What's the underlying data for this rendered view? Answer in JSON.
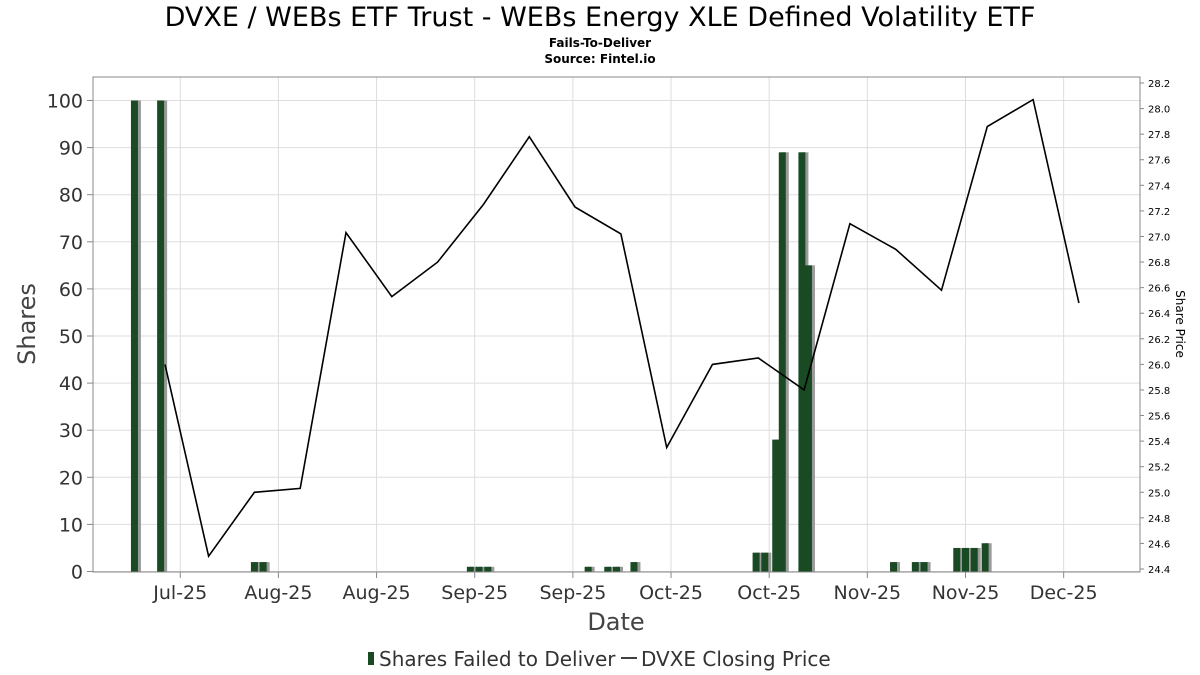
{
  "header": {
    "title": "DVXE / WEBs ETF Trust - WEBs Energy XLE Defined Volatility ETF",
    "subtitle": "Fails-To-Deliver",
    "source": "Source: Fintel.io"
  },
  "colors": {
    "bar": "#1a4a24",
    "bar_shadow": "#9a9a9a",
    "line": "#000000",
    "grid": "#dddddd"
  },
  "chart_data": {
    "type": "bar",
    "xlabel": "Date",
    "ylabel": "Shares",
    "ylabel_right": "Share Price",
    "ylim": [
      0,
      100
    ],
    "ylim_right": [
      24.4,
      28.2
    ],
    "yticks": [
      0,
      10,
      20,
      30,
      40,
      50,
      60,
      70,
      80,
      90,
      100
    ],
    "yticks_right": [
      "24.4",
      "24.6",
      "24.8",
      "25.0",
      "25.2",
      "25.4",
      "25.6",
      "25.8",
      "26.0",
      "26.2",
      "26.4",
      "26.6",
      "26.8",
      "27.0",
      "27.2",
      "27.4",
      "27.6",
      "27.8",
      "28.0",
      "28.2"
    ],
    "xticks": [
      {
        "label": "Jul-25",
        "x": 0.5
      },
      {
        "label": "Aug-25",
        "x": 5.0
      },
      {
        "label": "Aug-25",
        "x": 9.5
      },
      {
        "label": "Sep-25",
        "x": 14.0
      },
      {
        "label": "Sep-25",
        "x": 18.5
      },
      {
        "label": "Oct-25",
        "x": 23.0
      },
      {
        "label": "Oct-25",
        "x": 27.5
      },
      {
        "label": "Nov-25",
        "x": 32.0
      },
      {
        "label": "Nov-25",
        "x": 36.5
      },
      {
        "label": "Dec-25",
        "x": 41.0
      }
    ],
    "xlim": [
      -3.5,
      44.5
    ],
    "series": [
      {
        "name": "Shares Failed to Deliver",
        "type": "bar",
        "points": [
          {
            "x": -1.6,
            "y": 100
          },
          {
            "x": -0.4,
            "y": 100
          },
          {
            "x": 3.9,
            "y": 2
          },
          {
            "x": 4.3,
            "y": 2
          },
          {
            "x": 13.8,
            "y": 1
          },
          {
            "x": 14.2,
            "y": 1
          },
          {
            "x": 14.6,
            "y": 1
          },
          {
            "x": 19.2,
            "y": 1
          },
          {
            "x": 20.1,
            "y": 1
          },
          {
            "x": 20.5,
            "y": 1
          },
          {
            "x": 21.3,
            "y": 2
          },
          {
            "x": 26.9,
            "y": 4
          },
          {
            "x": 27.3,
            "y": 4
          },
          {
            "x": 27.8,
            "y": 28
          },
          {
            "x": 28.1,
            "y": 89
          },
          {
            "x": 29.0,
            "y": 89
          },
          {
            "x": 29.3,
            "y": 65
          },
          {
            "x": 33.2,
            "y": 2
          },
          {
            "x": 34.2,
            "y": 2
          },
          {
            "x": 34.6,
            "y": 2
          },
          {
            "x": 36.1,
            "y": 5
          },
          {
            "x": 36.5,
            "y": 5
          },
          {
            "x": 36.9,
            "y": 5
          },
          {
            "x": 37.4,
            "y": 6
          }
        ]
      },
      {
        "name": "DVXE Closing Price",
        "type": "line",
        "points": [
          {
            "x": -0.2,
            "y": 26.0
          },
          {
            "x": 1.8,
            "y": 24.5
          },
          {
            "x": 3.9,
            "y": 25.0
          },
          {
            "x": 6.0,
            "y": 25.03
          },
          {
            "x": 8.1,
            "y": 27.03
          },
          {
            "x": 10.2,
            "y": 26.53
          },
          {
            "x": 12.3,
            "y": 26.8
          },
          {
            "x": 14.4,
            "y": 27.25
          },
          {
            "x": 16.5,
            "y": 27.78
          },
          {
            "x": 18.6,
            "y": 27.23
          },
          {
            "x": 20.7,
            "y": 27.02
          },
          {
            "x": 22.8,
            "y": 25.35
          },
          {
            "x": 24.9,
            "y": 26.0
          },
          {
            "x": 27.0,
            "y": 26.05
          },
          {
            "x": 29.1,
            "y": 25.8
          },
          {
            "x": 31.2,
            "y": 27.1
          },
          {
            "x": 33.3,
            "y": 26.9
          },
          {
            "x": 35.4,
            "y": 26.58
          },
          {
            "x": 37.5,
            "y": 27.86
          },
          {
            "x": 39.6,
            "y": 28.07
          },
          {
            "x": 41.7,
            "y": 26.48
          }
        ]
      }
    ]
  },
  "legend": {
    "bar_label": "Shares Failed to Deliver",
    "line_label": "DVXE Closing Price"
  }
}
